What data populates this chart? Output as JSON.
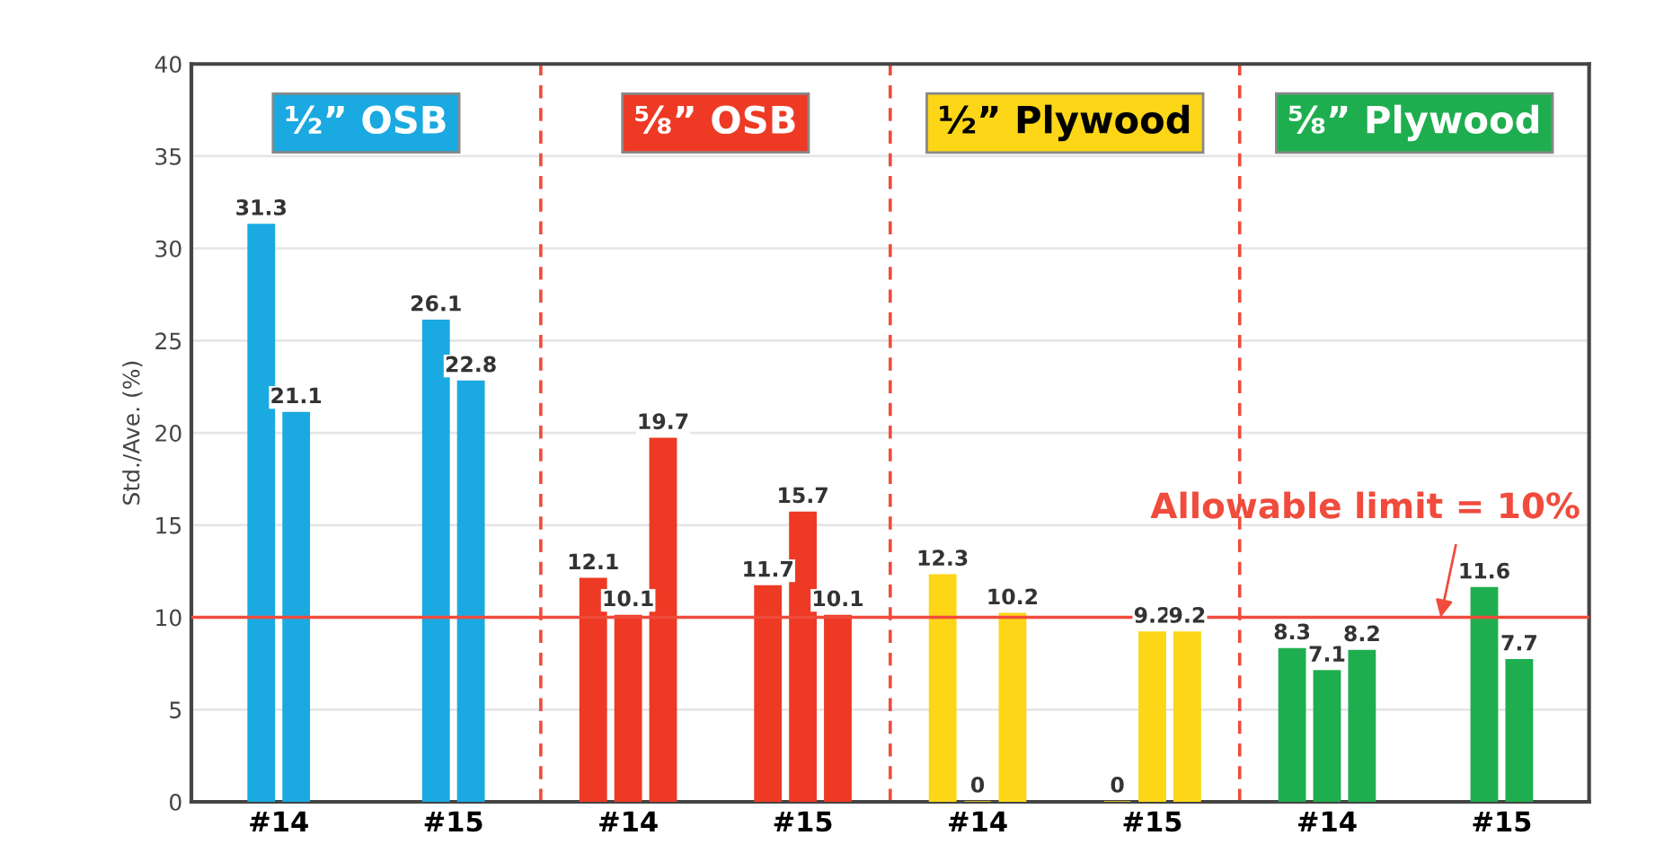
{
  "chart_data": {
    "type": "bar",
    "ylabel": "Std./Ave. (%)",
    "categories": [
      "#14",
      "#15",
      "#14",
      "#15",
      "#14",
      "#15",
      "#14",
      "#15"
    ],
    "series": [
      {
        "colors": [
          "#1ba9e1",
          "#1ba9e1",
          "#ee3a24",
          "#ee3a24",
          "#fcd617",
          "#fcd617",
          "#1fae4f",
          "#1fae4f"
        ],
        "values": [
          31.3,
          26.1,
          12.1,
          11.7,
          12.3,
          0,
          8.3,
          11.6
        ]
      },
      {
        "colors": [
          "#1ba9e1",
          "#1ba9e1",
          "#ee3a24",
          "#ee3a24",
          "#fcd617",
          "#fcd617",
          "#1fae4f",
          "#1fae4f"
        ],
        "values": [
          21.1,
          22.8,
          10.1,
          15.7,
          0,
          9.2,
          7.1,
          7.7
        ]
      },
      {
        "colors": [
          "#1ba9e1",
          "#1ba9e1",
          "#ee3a24",
          "#ee3a24",
          "#fcd617",
          "#fcd617",
          "#1fae4f",
          "#1fae4f"
        ],
        "values": [
          null,
          null,
          19.7,
          10.1,
          10.2,
          9.2,
          8.2,
          null
        ]
      }
    ],
    "annotations": [
      "½” OSB",
      "⅝” OSB",
      "½” Plywood",
      "⅝” Plywood"
    ],
    "ref_lines": [
      {
        "axis": "y",
        "value": 10,
        "label": "Allowable limit = 10%",
        "color": "#f04b3c"
      }
    ],
    "ylim": [
      0,
      40
    ],
    "yticks": [
      0,
      5,
      10,
      15,
      20,
      25,
      30,
      35,
      40
    ],
    "grid": "y",
    "data_labels": true
  }
}
